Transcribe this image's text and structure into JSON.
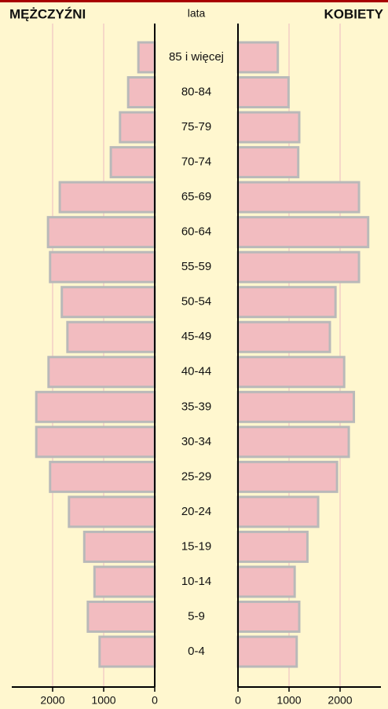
{
  "chart_data": {
    "type": "pyramid",
    "center_label": "lata",
    "categories": [
      "85 i więcej",
      "80-84",
      "75-79",
      "70-74",
      "65-69",
      "60-64",
      "55-59",
      "50-54",
      "45-49",
      "40-44",
      "35-39",
      "30-34",
      "25-29",
      "20-24",
      "15-19",
      "10-14",
      "5-9",
      "0-4"
    ],
    "series": [
      {
        "name": "MĘŻCZYŹNI",
        "side": "left",
        "color": "#f2bcc0",
        "values": [
          320,
          520,
          680,
          860,
          1860,
          2090,
          2050,
          1820,
          1710,
          2080,
          2320,
          2320,
          2050,
          1680,
          1380,
          1180,
          1310,
          1080
        ]
      },
      {
        "name": "KOBIETY",
        "side": "right",
        "color": "#f2bcc0",
        "values": [
          780,
          990,
          1200,
          1180,
          2370,
          2550,
          2370,
          1910,
          1800,
          2080,
          2270,
          2170,
          1940,
          1570,
          1360,
          1110,
          1200,
          1150
        ]
      }
    ],
    "xlim": [
      0,
      2800
    ],
    "xticks": [
      0,
      1000,
      2000
    ],
    "grid": true
  }
}
